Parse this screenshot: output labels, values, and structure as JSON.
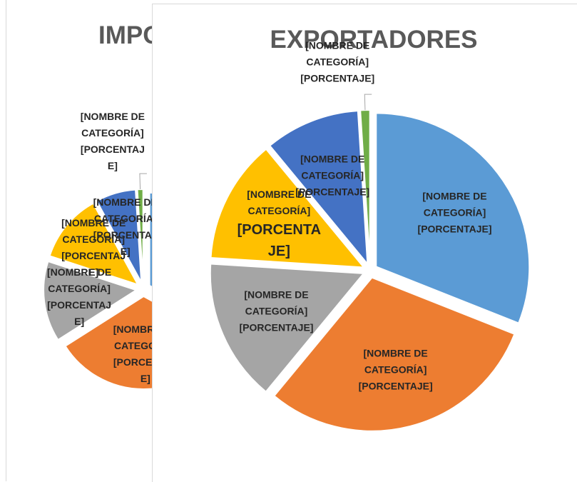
{
  "chart_data": [
    {
      "type": "pie",
      "title": "IMPORTADORES",
      "categories": [
        "[NOMBRE DE CATEGORÍA]",
        "[NOMBRE DE CATEGORÍA]",
        "[NOMBRE DE CATEGORÍA]",
        "[NOMBRE DE CATEGORÍA]",
        "[NOMBRE DE CATEGORÍA]",
        "[NOMBRE DE CATEGORÍA]"
      ],
      "values": [
        33,
        33,
        14,
        12,
        7,
        1
      ],
      "value_labels": [
        "[PORCENTAJE]",
        "[PORCENTAJE]",
        "[PORCENTAJE]",
        "[PORCENTAJE]",
        "[PORCENTAJE]",
        "[PORCENTAJE]"
      ],
      "colors": [
        "#5b9bd5",
        "#ed7d31",
        "#a5a5a5",
        "#ffc000",
        "#4472c4",
        "#70ad47"
      ]
    },
    {
      "type": "pie",
      "title": "EXPORTADORES",
      "categories": [
        "[NOMBRE DE CATEGORÍA]",
        "[NOMBRE DE CATEGORÍA]",
        "[NOMBRE DE CATEGORÍA]",
        "[NOMBRE DE CATEGORÍA]",
        "[NOMBRE DE CATEGORÍA]",
        "[NOMBRE DE CATEGORÍA]"
      ],
      "values": [
        31,
        30,
        15,
        13,
        10,
        1
      ],
      "value_labels": [
        "[PORCENTAJE]",
        "[PORCENTAJE]",
        "[PORCENTAJE]",
        "[PORCENTAJE]",
        "[PORCENTAJE]",
        "[PORCENTAJE]"
      ],
      "colors": [
        "#5b9bd5",
        "#ed7d31",
        "#a5a5a5",
        "#ffc000",
        "#4472c4",
        "#70ad47"
      ]
    }
  ]
}
